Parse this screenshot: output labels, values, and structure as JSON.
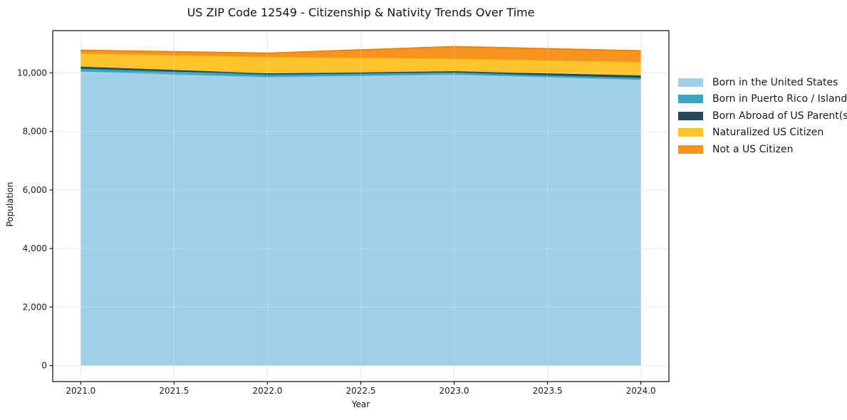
{
  "figure": {
    "title": "US ZIP Code 12549 - Citizenship & Nativity Trends Over Time",
    "xlabel": "Year",
    "ylabel": "Population"
  },
  "chart_data": {
    "type": "area",
    "stacked": true,
    "title": "US ZIP Code 12549 - Citizenship & Nativity Trends Over Time",
    "xlabel": "Year",
    "ylabel": "Population",
    "x": [
      2021,
      2022,
      2023,
      2024
    ],
    "series": [
      {
        "name": "Born in the United States",
        "color": "#9fd0e8",
        "edge": "#8ac2dc",
        "values": [
          10050,
          9860,
          9950,
          9770
        ]
      },
      {
        "name": "Born in Puerto Rico / Islands",
        "color": "#3aa6c2",
        "edge": "#2a92ad",
        "values": [
          100,
          85,
          60,
          65
        ]
      },
      {
        "name": "Born Abroad of US Parent(s)",
        "color": "#28495b",
        "edge": "#1b3848",
        "values": [
          60,
          40,
          45,
          75
        ]
      },
      {
        "name": "Naturalized US Citizen",
        "color": "#fcc32d",
        "edge": "#edad13",
        "values": [
          460,
          565,
          440,
          470
        ]
      },
      {
        "name": "Not a US Citizen",
        "color": "#f79420",
        "edge": "#e5810f",
        "values": [
          105,
          125,
          405,
          375
        ]
      }
    ],
    "x_ticks": [
      {
        "value": 2021.0,
        "label": "2021.0"
      },
      {
        "value": 2021.5,
        "label": "2021.5"
      },
      {
        "value": 2022.0,
        "label": "2022.0"
      },
      {
        "value": 2022.5,
        "label": "2022.5"
      },
      {
        "value": 2023.0,
        "label": "2023.0"
      },
      {
        "value": 2023.5,
        "label": "2023.5"
      },
      {
        "value": 2024.0,
        "label": "2024.0"
      }
    ],
    "y_ticks": [
      {
        "value": 0,
        "label": "0"
      },
      {
        "value": 2000,
        "label": "2,000"
      },
      {
        "value": 4000,
        "label": "4,000"
      },
      {
        "value": 6000,
        "label": "6,000"
      },
      {
        "value": 8000,
        "label": "8,000"
      },
      {
        "value": 10000,
        "label": "10,000"
      }
    ],
    "xlim": [
      2020.85,
      2024.15
    ],
    "ylim": [
      -545,
      11445
    ],
    "grid": true,
    "legend_position": "right"
  },
  "colors": {
    "background": "#ffffff",
    "grid": "#e7e7ec",
    "grid_over_area": "rgba(255,255,255,0.22)",
    "spine": "#1f1f1f",
    "tick_text": "#1a1a1a"
  }
}
